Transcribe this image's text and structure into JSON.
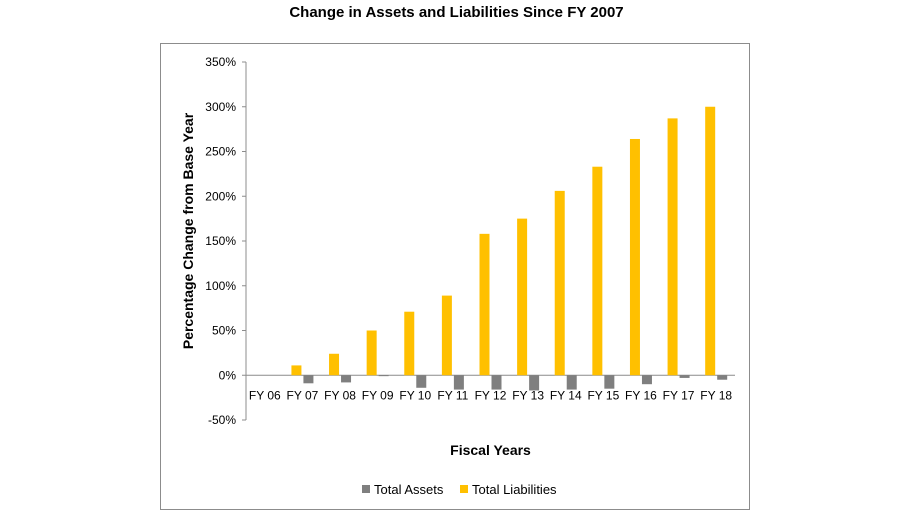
{
  "page": {
    "title": "Change in Assets and Liabilities Since FY 2007"
  },
  "colors": {
    "total_assets": "#7f7f7f",
    "total_liabilities": "#ffc000",
    "axis": "#8c8c8c"
  },
  "chart_data": {
    "type": "bar",
    "title": "Change in Assets and Liabilities Since FY 2007",
    "xlabel": "Fiscal Years",
    "ylabel": "Percentage Change from Base Year",
    "categories": [
      "FY 06",
      "FY 07",
      "FY 08",
      "FY 09",
      "FY 10",
      "FY 11",
      "FY 12",
      "FY 13",
      "FY 14",
      "FY 15",
      "FY 16",
      "FY 17",
      "FY 18"
    ],
    "series": [
      {
        "name": "Total Assets",
        "values": [
          0,
          -9,
          -8,
          -1,
          -14,
          -16,
          -16,
          -17,
          -16,
          -15,
          -10,
          -3,
          -5
        ]
      },
      {
        "name": "Total Liabilities",
        "values": [
          0,
          11,
          24,
          50,
          71,
          89,
          158,
          175,
          206,
          233,
          264,
          287,
          300
        ]
      }
    ],
    "ylim": [
      -50,
      350
    ],
    "yticks": [
      -50,
      0,
      50,
      100,
      150,
      200,
      250,
      300,
      350
    ],
    "ytick_labels": [
      "-50%",
      "0%",
      "50%",
      "100%",
      "150%",
      "200%",
      "250%",
      "300%",
      "350%"
    ],
    "grid": false,
    "legend_position": "bottom"
  }
}
